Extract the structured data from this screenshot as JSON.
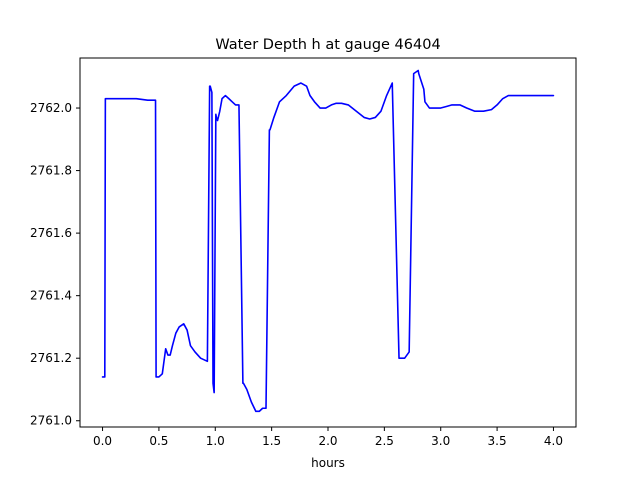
{
  "chart_data": {
    "type": "line",
    "title": "Water Depth h at gauge 46404",
    "xlabel": "hours",
    "ylabel": "",
    "xlim": [
      -0.2,
      4.2
    ],
    "ylim": [
      2760.98,
      2762.16
    ],
    "x_ticks": [
      0.0,
      0.5,
      1.0,
      1.5,
      2.0,
      2.5,
      3.0,
      3.5,
      4.0
    ],
    "x_tick_labels": [
      "0.0",
      "0.5",
      "1.0",
      "1.5",
      "2.0",
      "2.5",
      "3.0",
      "3.5",
      "4.0"
    ],
    "y_ticks": [
      2761.0,
      2761.2,
      2761.4,
      2761.6,
      2761.8,
      2762.0
    ],
    "y_tick_labels": [
      "2761.0",
      "2761.2",
      "2761.4",
      "2761.6",
      "2761.8",
      "2762.0"
    ],
    "grid": false,
    "series": [
      {
        "color": "#0000ff",
        "x": [
          0.0,
          0.02,
          0.025,
          0.1,
          0.2,
          0.3,
          0.4,
          0.47,
          0.475,
          0.5,
          0.53,
          0.56,
          0.58,
          0.6,
          0.62,
          0.65,
          0.68,
          0.72,
          0.75,
          0.78,
          0.82,
          0.87,
          0.93,
          0.95,
          0.955,
          0.97,
          0.98,
          0.99,
          1.005,
          1.01,
          1.02,
          1.04,
          1.06,
          1.09,
          1.12,
          1.15,
          1.18,
          1.21,
          1.245,
          1.25,
          1.28,
          1.32,
          1.36,
          1.39,
          1.42,
          1.45,
          1.48,
          1.485,
          1.52,
          1.57,
          1.63,
          1.7,
          1.76,
          1.81,
          1.84,
          1.88,
          1.93,
          1.98,
          2.03,
          2.07,
          2.12,
          2.18,
          2.25,
          2.32,
          2.37,
          2.42,
          2.47,
          2.52,
          2.57,
          2.63,
          2.68,
          2.72,
          2.76,
          2.8,
          2.805,
          2.85,
          2.86,
          2.9,
          2.95,
          3.0,
          3.05,
          3.1,
          3.17,
          3.23,
          3.3,
          3.38,
          3.45,
          3.5,
          3.55,
          3.6,
          3.65,
          3.72,
          3.8,
          3.88,
          3.95,
          4.0
        ],
        "y": [
          2761.14,
          2761.14,
          2762.03,
          2762.03,
          2762.03,
          2762.03,
          2762.025,
          2762.025,
          2761.14,
          2761.14,
          2761.15,
          2761.23,
          2761.21,
          2761.21,
          2761.24,
          2761.28,
          2761.3,
          2761.31,
          2761.29,
          2761.24,
          2761.22,
          2761.2,
          2761.19,
          2762.07,
          2762.07,
          2762.05,
          2761.12,
          2761.09,
          2761.98,
          2761.97,
          2761.96,
          2761.99,
          2762.03,
          2762.04,
          2762.03,
          2762.02,
          2762.01,
          2762.01,
          2761.12,
          2761.12,
          2761.1,
          2761.06,
          2761.03,
          2761.03,
          2761.04,
          2761.04,
          2761.93,
          2761.93,
          2761.97,
          2762.02,
          2762.04,
          2762.07,
          2762.08,
          2762.07,
          2762.04,
          2762.02,
          2762.0,
          2762.0,
          2762.01,
          2762.015,
          2762.015,
          2762.01,
          2761.99,
          2761.97,
          2761.965,
          2761.97,
          2761.99,
          2762.04,
          2762.08,
          2761.2,
          2761.2,
          2761.22,
          2762.11,
          2762.12,
          2762.11,
          2762.06,
          2762.02,
          2762.0,
          2762.0,
          2762.0,
          2762.005,
          2762.01,
          2762.01,
          2762.0,
          2761.99,
          2761.99,
          2761.995,
          2762.01,
          2762.03,
          2762.04,
          2762.04,
          2762.04,
          2762.04,
          2762.04,
          2762.04,
          2762.04
        ]
      }
    ]
  }
}
